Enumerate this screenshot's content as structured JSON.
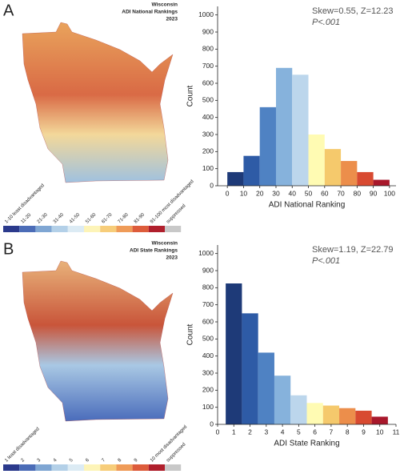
{
  "chart_data": [
    {
      "type": "histogram",
      "panel": "A",
      "map_title": [
        "Wisconsin",
        "ADI National Rankings",
        "2023"
      ],
      "legend_labels": [
        "1-10 least disadvantaged",
        "11-20",
        "21-30",
        "31-40",
        "41-50",
        "51-60",
        "61-70",
        "71-80",
        "81-90",
        "91-100 most disadvantaged",
        "suppressed"
      ],
      "legend_colors": [
        "#2b3a8c",
        "#4b6cb7",
        "#7fa6d3",
        "#b3d0e8",
        "#dcebf4",
        "#fdf4b8",
        "#f7cd7a",
        "#ef9b58",
        "#dd5c3b",
        "#b01f2c",
        "#c8c8c8"
      ],
      "annotation": "Skew=0.55, Z=12.23",
      "p_value": "P<.001",
      "xlabel": "ADI National Ranking",
      "ylabel": "Count",
      "bins": [
        0,
        10,
        20,
        30,
        40,
        50,
        60,
        70,
        80,
        90,
        100
      ],
      "values": [
        80,
        175,
        460,
        690,
        650,
        300,
        215,
        145,
        80,
        35
      ],
      "colors": [
        "#1e3a78",
        "#2e5ba6",
        "#4f82c3",
        "#86b2dc",
        "#bcd6ec",
        "#fffbb3",
        "#f5c96c",
        "#ec8e4b",
        "#d84a31",
        "#a8182b"
      ],
      "xlim": [
        -6,
        104
      ],
      "ylim": [
        0,
        1050
      ],
      "xticks": [
        0,
        10,
        20,
        30,
        40,
        50,
        60,
        70,
        80,
        90,
        100
      ],
      "yticks": [
        0,
        100,
        200,
        300,
        400,
        500,
        600,
        700,
        800,
        900,
        1000
      ]
    },
    {
      "type": "histogram",
      "panel": "B",
      "map_title": [
        "Wisconsin",
        "ADI State Rankings",
        "2023"
      ],
      "legend_labels": [
        "1 least disadvantaged",
        "2",
        "3",
        "4",
        "5",
        "6",
        "7",
        "8",
        "9",
        "10 most disadvantaged",
        "suppressed"
      ],
      "legend_colors": [
        "#2b3a8c",
        "#4b6cb7",
        "#7fa6d3",
        "#b3d0e8",
        "#dcebf4",
        "#fdf4b8",
        "#f7cd7a",
        "#ef9b58",
        "#dd5c3b",
        "#b01f2c",
        "#c8c8c8"
      ],
      "annotation": "Skew=1.19, Z=22.79",
      "p_value": "P<.001",
      "xlabel": "ADI State Ranking",
      "ylabel": "Count",
      "bins": [
        0.5,
        1.5,
        2.5,
        3.5,
        4.5,
        5.5,
        6.5,
        7.5,
        8.5,
        9.5,
        10.5
      ],
      "values": [
        825,
        650,
        420,
        285,
        170,
        125,
        110,
        95,
        80,
        45
      ],
      "colors": [
        "#1e3a78",
        "#2e5ba6",
        "#4f82c3",
        "#86b2dc",
        "#bcd6ec",
        "#fffbb3",
        "#f5c96c",
        "#ec8e4b",
        "#d84a31",
        "#a8182b"
      ],
      "xlim": [
        0,
        11
      ],
      "ylim": [
        0,
        1050
      ],
      "xticks": [
        0,
        1,
        2,
        3,
        4,
        5,
        6,
        7,
        8,
        9,
        10,
        11
      ],
      "yticks": [
        0,
        100,
        200,
        300,
        400,
        500,
        600,
        700,
        800,
        900,
        1000
      ]
    }
  ]
}
